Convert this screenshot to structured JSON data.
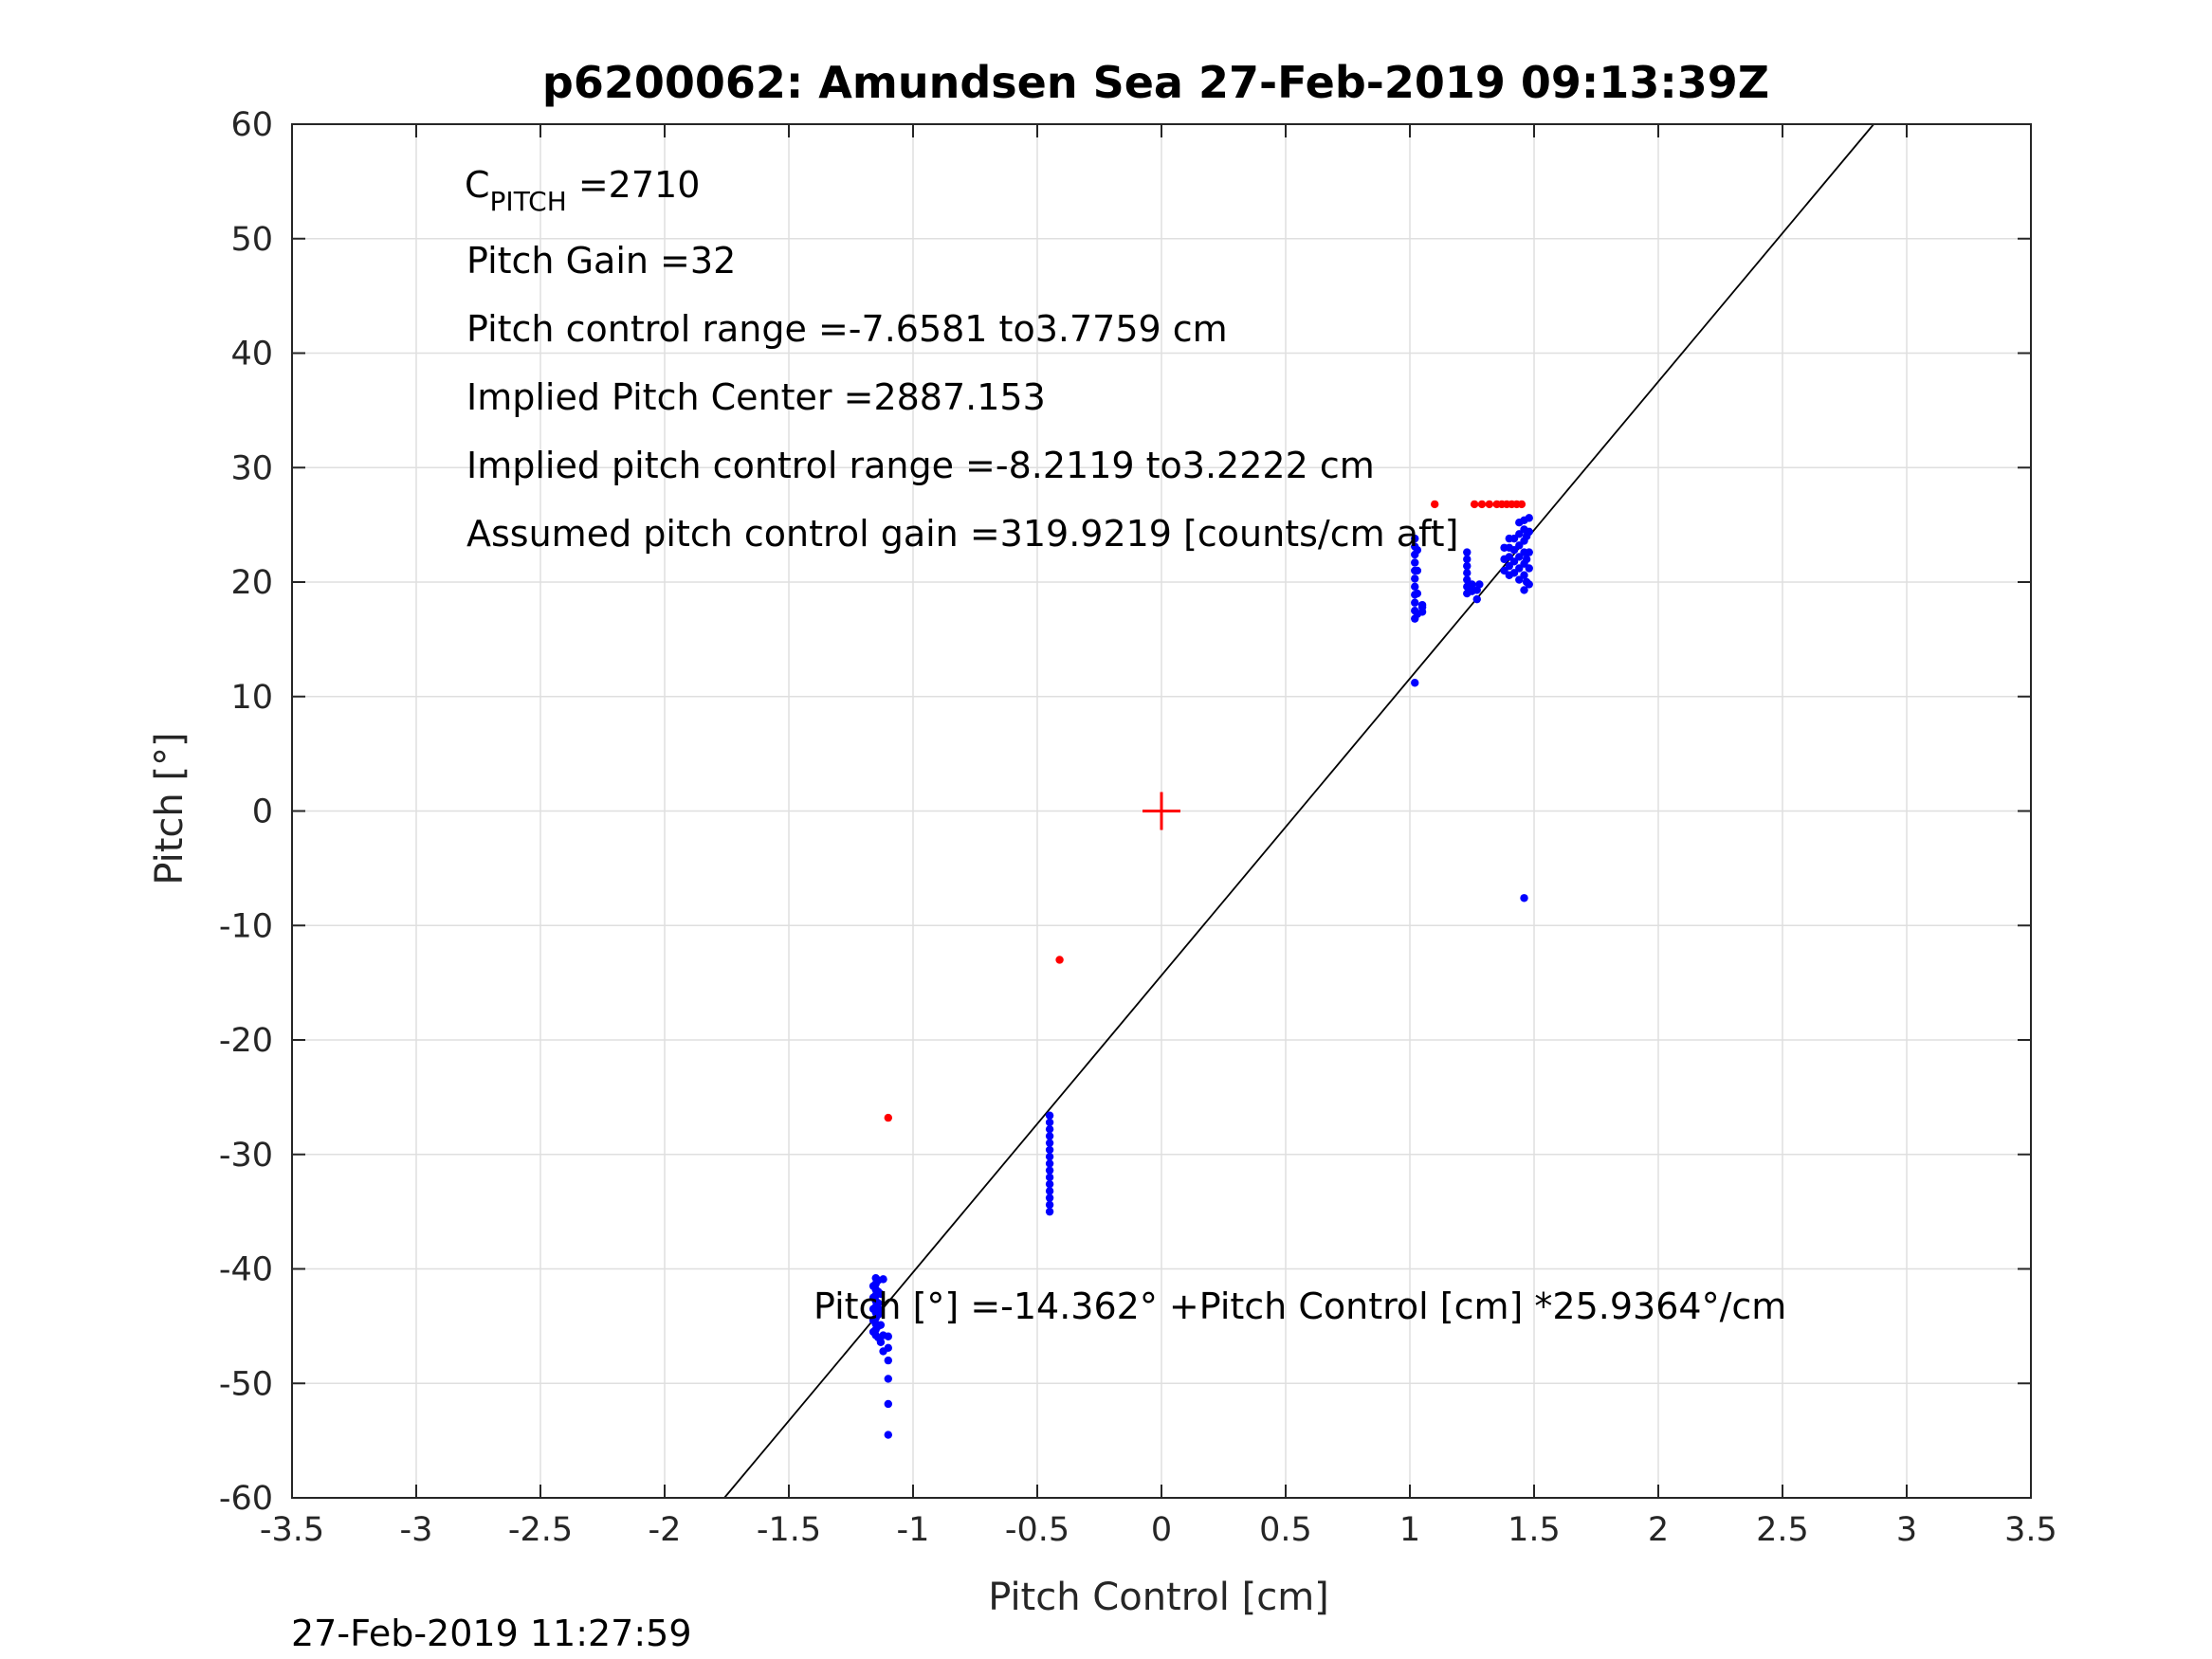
{
  "chart_data": {
    "type": "scatter",
    "title": "p6200062: Amundsen Sea 27-Feb-2019 09:13:39Z",
    "xlabel": "Pitch Control [cm]",
    "ylabel": "Pitch [°]",
    "xlim": [
      -3.5,
      3.5
    ],
    "ylim": [
      -60,
      60
    ],
    "xticks": [
      -3.5,
      -3,
      -2.5,
      -2,
      -1.5,
      -1,
      -0.5,
      0,
      0.5,
      1,
      1.5,
      2,
      2.5,
      3,
      3.5
    ],
    "xtick_labels": [
      "-3.5",
      "-3",
      "-2.5",
      "-2",
      "-1.5",
      "-1",
      "-0.5",
      "0",
      "0.5",
      "1",
      "1.5",
      "2",
      "2.5",
      "3",
      "3.5"
    ],
    "yticks": [
      60,
      50,
      40,
      30,
      20,
      10,
      0,
      -10,
      -20,
      -30,
      -40,
      -50,
      -60
    ],
    "ytick_labels": [
      "60",
      "50",
      "40",
      "30",
      "20",
      "10",
      "0",
      "-10",
      "-20",
      "-30",
      "-40",
      "-50",
      "-60"
    ],
    "grid": true,
    "colors": {
      "blue": "#0000ff",
      "red": "#ff0000",
      "line": "#000000",
      "grid": "#dfdfdf",
      "axis": "#262626"
    },
    "fit_line": {
      "intercept": -14.362,
      "slope": 25.9364
    },
    "center_marker": {
      "x": 0,
      "y": 0
    },
    "annotations": {
      "c_pitch": {
        "main": "C",
        "sub": "PITCH",
        "value": " =2710"
      },
      "pitch_gain": "Pitch Gain =32",
      "control_range": "Pitch control range =-7.6581 to3.7759 cm",
      "implied_center": "Implied Pitch Center =2887.153",
      "implied_range": "Implied pitch control range =-8.2119 to3.2222 cm",
      "assumed_gain": "Assumed pitch control gain =319.9219 [counts/cm aft]",
      "equation": "Pitch [°] =-14.362° +Pitch Control [cm] *25.9364°/cm"
    },
    "timestamp": "27-Feb-2019 11:27:59",
    "series": [
      {
        "color": "blue",
        "points": [
          [
            -1.15,
            -40.8
          ],
          [
            -1.15,
            -41.3
          ],
          [
            -1.15,
            -41.8
          ],
          [
            -1.15,
            -42.3
          ],
          [
            -1.15,
            -42.8
          ],
          [
            -1.15,
            -43.3
          ],
          [
            -1.15,
            -43.8
          ],
          [
            -1.15,
            -44.3
          ],
          [
            -1.15,
            -44.8
          ],
          [
            -1.15,
            -45.3
          ],
          [
            -1.15,
            -45.8
          ],
          [
            -1.14,
            -41.0
          ],
          [
            -1.14,
            -42.0
          ],
          [
            -1.14,
            -43.0
          ],
          [
            -1.14,
            -44.0
          ],
          [
            -1.14,
            -45.0
          ],
          [
            -1.14,
            -46.0
          ],
          [
            -1.16,
            -41.5
          ],
          [
            -1.16,
            -42.5
          ],
          [
            -1.16,
            -43.5
          ],
          [
            -1.16,
            -44.5
          ],
          [
            -1.16,
            -45.5
          ],
          [
            -1.13,
            -42.2
          ],
          [
            -1.13,
            -43.6
          ],
          [
            -1.13,
            -44.9
          ],
          [
            -1.13,
            -46.4
          ],
          [
            -1.12,
            -40.9
          ],
          [
            -1.12,
            -45.8
          ],
          [
            -1.12,
            -47.2
          ],
          [
            -1.1,
            -45.9
          ],
          [
            -1.1,
            -46.9
          ],
          [
            -1.1,
            -48.0
          ],
          [
            -1.1,
            -49.6
          ],
          [
            -1.1,
            -51.8
          ],
          [
            -1.1,
            -54.5
          ],
          [
            -0.45,
            -26.6
          ],
          [
            -0.45,
            -27.2
          ],
          [
            -0.45,
            -27.8
          ],
          [
            -0.45,
            -28.4
          ],
          [
            -0.45,
            -29.0
          ],
          [
            -0.45,
            -29.6
          ],
          [
            -0.45,
            -30.2
          ],
          [
            -0.45,
            -30.8
          ],
          [
            -0.45,
            -31.4
          ],
          [
            -0.45,
            -32.0
          ],
          [
            -0.45,
            -32.6
          ],
          [
            -0.45,
            -33.2
          ],
          [
            -0.45,
            -33.8
          ],
          [
            -0.45,
            -34.4
          ],
          [
            -0.45,
            -35.0
          ],
          [
            1.02,
            11.2
          ],
          [
            1.02,
            16.8
          ],
          [
            1.02,
            17.5
          ],
          [
            1.02,
            18.2
          ],
          [
            1.02,
            18.9
          ],
          [
            1.02,
            19.6
          ],
          [
            1.02,
            20.3
          ],
          [
            1.02,
            21.0
          ],
          [
            1.02,
            21.7
          ],
          [
            1.02,
            22.4
          ],
          [
            1.02,
            23.1
          ],
          [
            1.02,
            23.8
          ],
          [
            1.03,
            17.2
          ],
          [
            1.03,
            19.0
          ],
          [
            1.03,
            21.0
          ],
          [
            1.03,
            22.8
          ],
          [
            1.05,
            17.4
          ],
          [
            1.05,
            18.0
          ],
          [
            1.05,
            17.8
          ],
          [
            1.23,
            19.0
          ],
          [
            1.23,
            19.6
          ],
          [
            1.23,
            20.2
          ],
          [
            1.23,
            20.8
          ],
          [
            1.23,
            21.4
          ],
          [
            1.23,
            22.0
          ],
          [
            1.23,
            22.6
          ],
          [
            1.25,
            19.2
          ],
          [
            1.25,
            19.8
          ],
          [
            1.27,
            18.5
          ],
          [
            1.27,
            19.3
          ],
          [
            1.28,
            19.8
          ],
          [
            1.38,
            21.0
          ],
          [
            1.38,
            22.0
          ],
          [
            1.38,
            23.0
          ],
          [
            1.4,
            20.6
          ],
          [
            1.4,
            21.4
          ],
          [
            1.4,
            22.2
          ],
          [
            1.4,
            23.0
          ],
          [
            1.4,
            23.8
          ],
          [
            1.42,
            20.8
          ],
          [
            1.42,
            21.8
          ],
          [
            1.42,
            22.8
          ],
          [
            1.42,
            23.8
          ],
          [
            1.44,
            20.2
          ],
          [
            1.44,
            21.2
          ],
          [
            1.44,
            22.2
          ],
          [
            1.44,
            23.2
          ],
          [
            1.44,
            24.2
          ],
          [
            1.44,
            25.2
          ],
          [
            1.46,
            19.3
          ],
          [
            1.46,
            20.6
          ],
          [
            1.46,
            21.6
          ],
          [
            1.46,
            22.6
          ],
          [
            1.46,
            23.6
          ],
          [
            1.46,
            24.6
          ],
          [
            1.46,
            25.4
          ],
          [
            1.47,
            20.0
          ],
          [
            1.47,
            22.0
          ],
          [
            1.47,
            24.0
          ],
          [
            1.48,
            19.8
          ],
          [
            1.48,
            21.2
          ],
          [
            1.48,
            22.6
          ],
          [
            1.48,
            24.4
          ],
          [
            1.48,
            25.6
          ],
          [
            1.46,
            -7.6
          ]
        ]
      },
      {
        "color": "red",
        "points": [
          [
            -1.1,
            -26.8
          ],
          [
            -0.41,
            -13.0
          ],
          [
            1.1,
            26.8
          ],
          [
            1.26,
            26.8
          ],
          [
            1.29,
            26.8
          ],
          [
            1.32,
            26.8
          ],
          [
            1.35,
            26.8
          ],
          [
            1.37,
            26.8
          ],
          [
            1.39,
            26.8
          ],
          [
            1.41,
            26.8
          ],
          [
            1.43,
            26.8
          ],
          [
            1.45,
            26.8
          ]
        ]
      }
    ]
  }
}
